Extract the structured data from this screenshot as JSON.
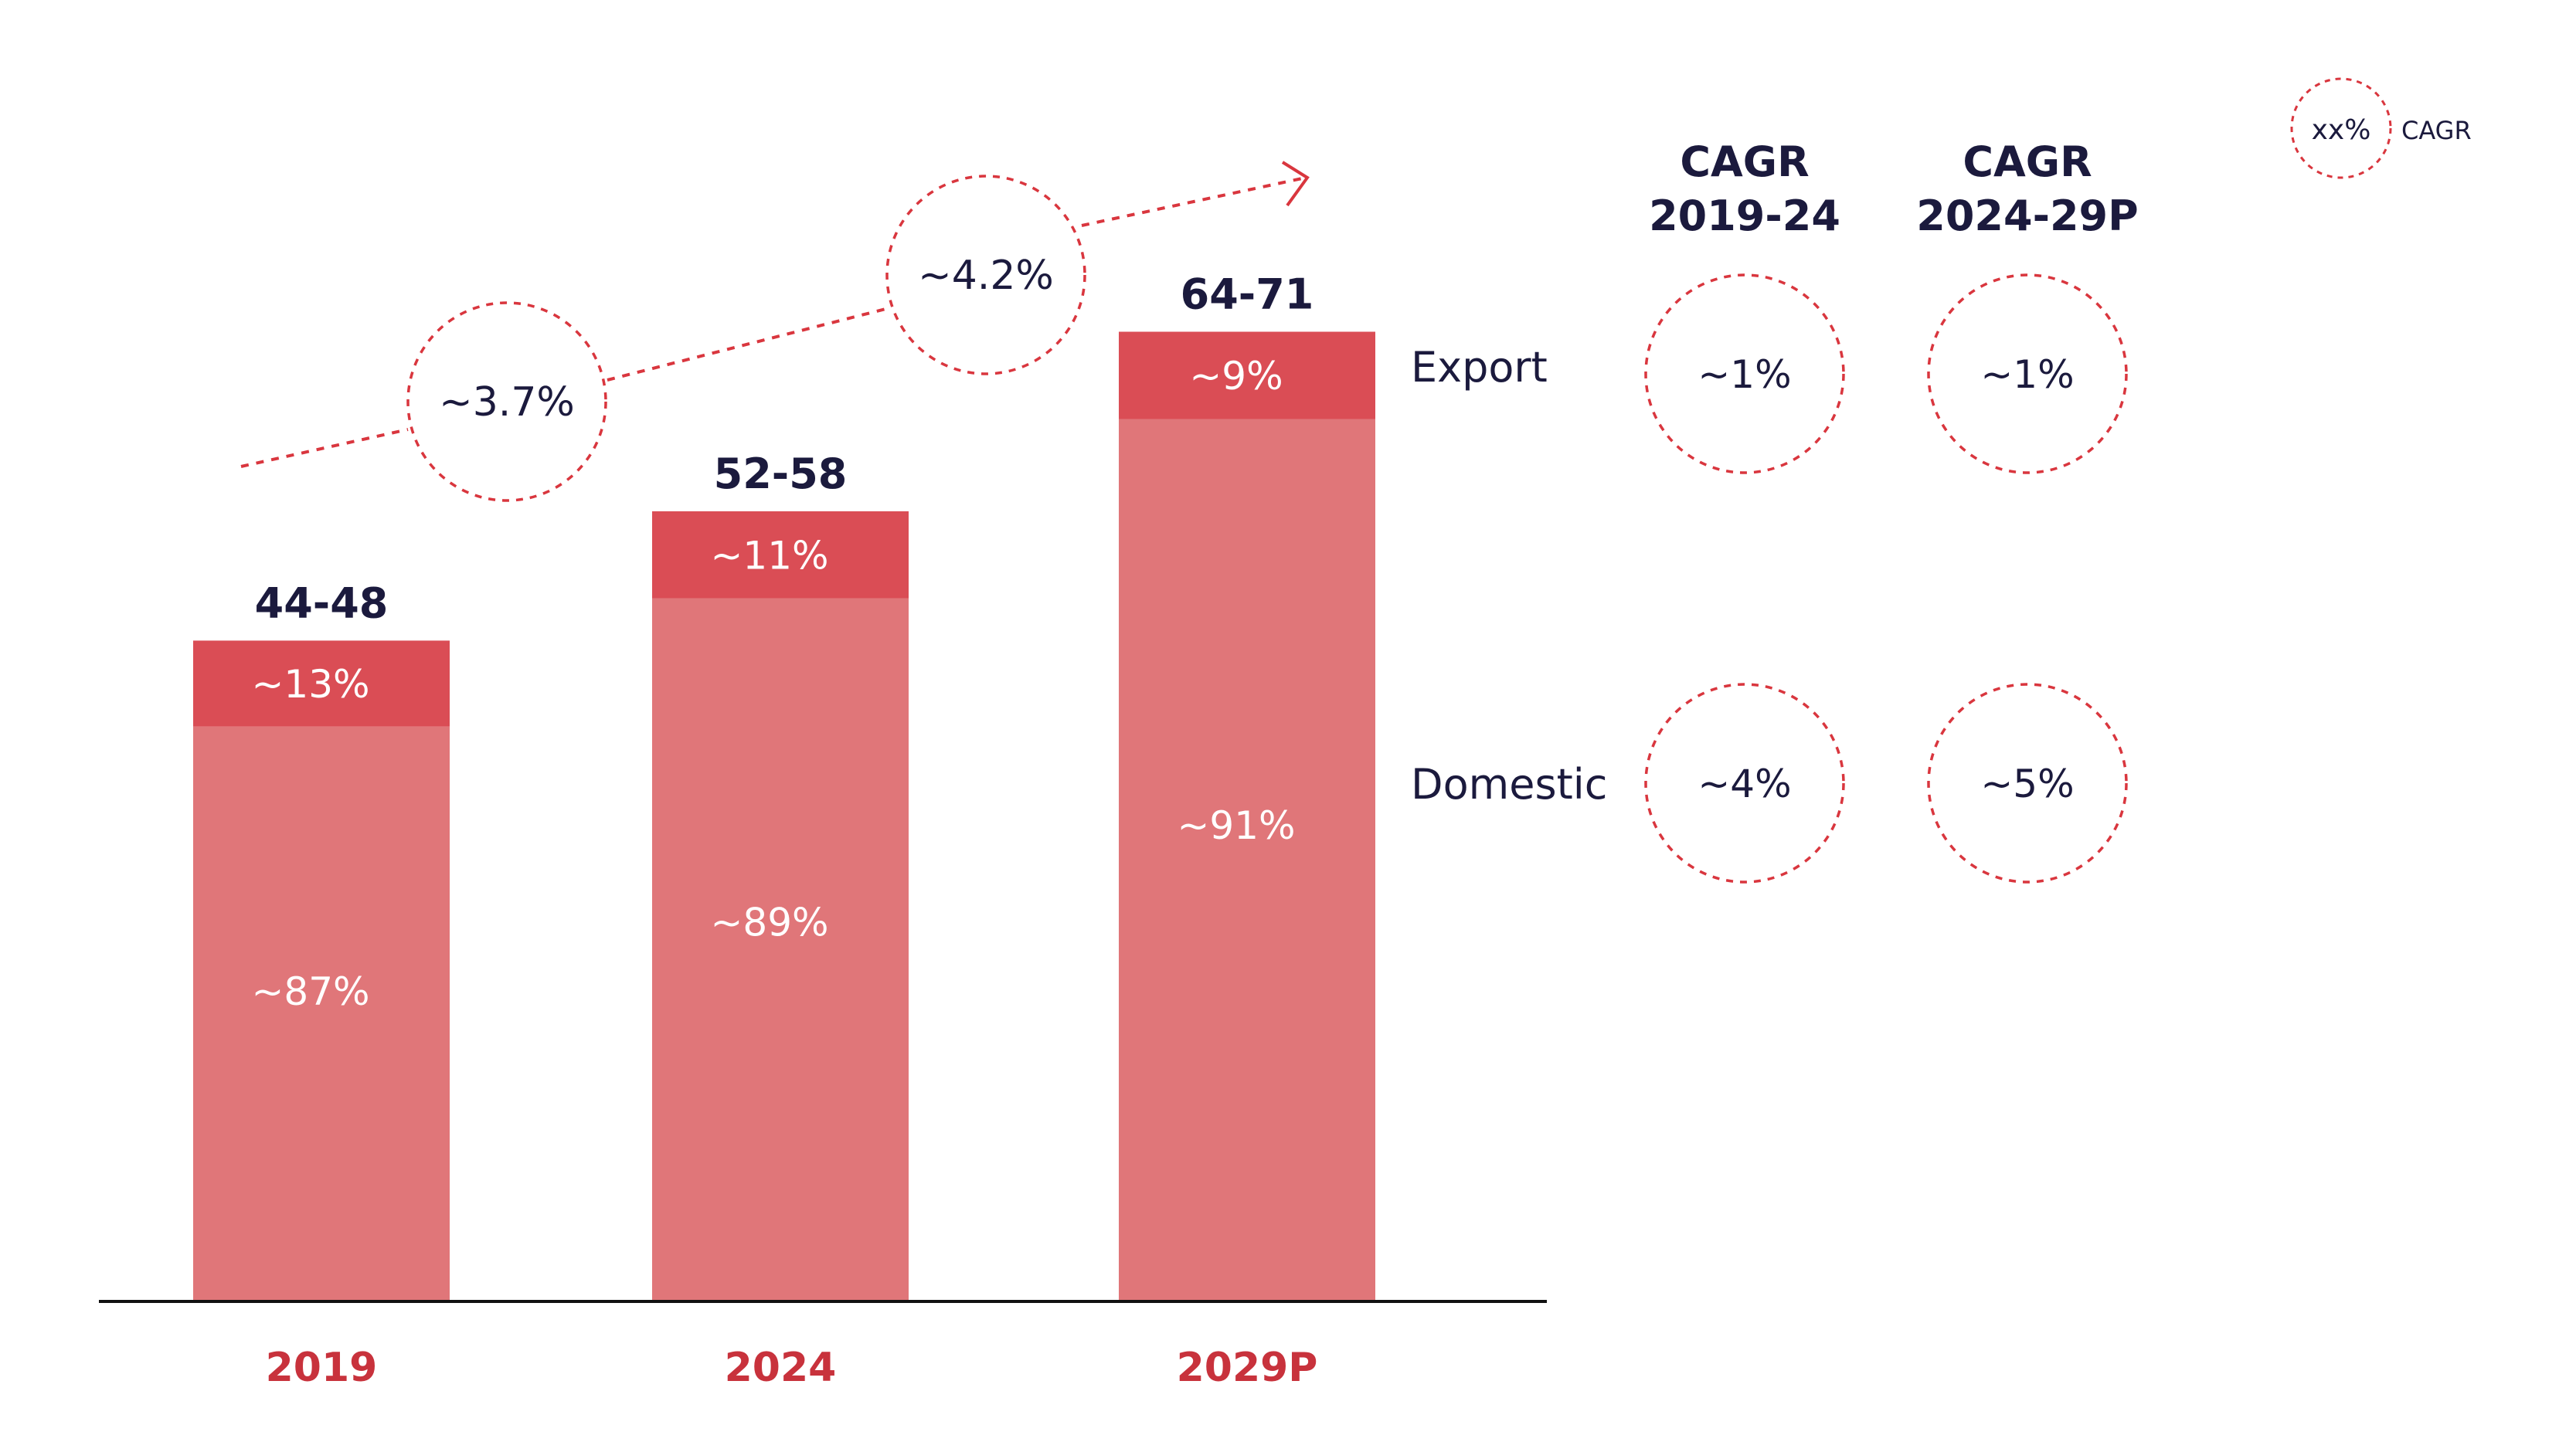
{
  "chart_data": {
    "type": "bar",
    "stacked": true,
    "categories": [
      "2019",
      "2024",
      "2029P"
    ],
    "totals": [
      "44-48",
      "52-58",
      "64-71"
    ],
    "series": [
      {
        "name": "Domestic",
        "values": [
          87,
          89,
          91
        ],
        "labels": [
          "~87%",
          "~89%",
          "~91%"
        ],
        "color": "#E07679"
      },
      {
        "name": "Export",
        "values": [
          13,
          11,
          9
        ],
        "labels": [
          "~13%",
          "~11%",
          "~9%"
        ],
        "color": "#DA4D55"
      }
    ],
    "total_cagr": [
      {
        "period": "2019-24",
        "label": "~3.7%"
      },
      {
        "period": "2024-29P",
        "label": "~4.2%"
      }
    ],
    "segment_cagr_table": {
      "headers": [
        {
          "line1": "CAGR",
          "line2": "2019-24"
        },
        {
          "line1": "CAGR",
          "line2": "2024-29P"
        }
      ],
      "rows": [
        {
          "segment": "Export",
          "values": [
            "~1%",
            "~1%"
          ]
        },
        {
          "segment": "Domestic",
          "values": [
            "~4%",
            "~5%"
          ]
        }
      ]
    },
    "legend": {
      "sample": "xx%",
      "label": "CAGR",
      "placement": "top-right"
    },
    "colors": {
      "axis_label": "#C8323C",
      "dark_text": "#1B1A3D",
      "dashed": "#D9363E",
      "inner_text": "#FFFFFF"
    },
    "grid": false
  }
}
